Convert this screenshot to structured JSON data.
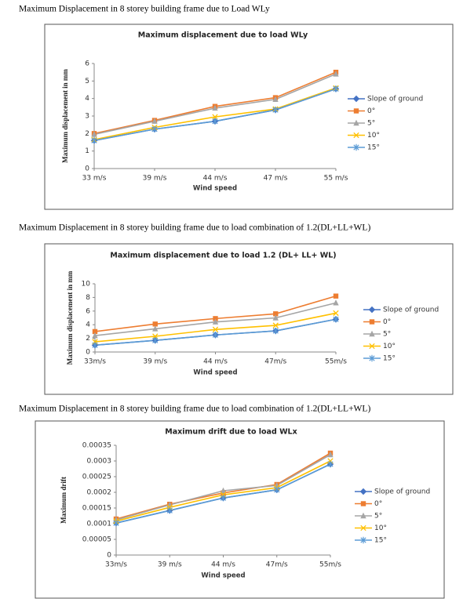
{
  "captions": [
    "Maximum Displacement in 8 storey building frame due to Load WLy",
    "Maximum Displacement in 8 storey building frame due to load combination of 1.2(DL+LL+WL)",
    "Maximum Displacement in 8 storey building frame due to load combination of 1.2(DL+LL+WL)"
  ],
  "chart_data": [
    {
      "type": "line",
      "title": "Maximum displacement due to load WLy",
      "x_label": "Wind speed",
      "y_label": "Maximum displacement in mm",
      "categories": [
        "33 m/s",
        "39 m/s",
        "44 m/s",
        "47 m/s",
        "55 m/s"
      ],
      "ylim": [
        0,
        6
      ],
      "yticks": [
        0,
        1,
        2,
        3,
        4,
        5,
        6
      ],
      "series": [
        {
          "name": "Slope of ground",
          "color": "#4472c4",
          "marker": "diamond",
          "values": [
            1.6,
            2.25,
            2.7,
            3.35,
            4.55
          ]
        },
        {
          "name": "0°",
          "color": "#ed7d31",
          "marker": "square",
          "values": [
            2.0,
            2.75,
            3.55,
            4.05,
            5.5
          ]
        },
        {
          "name": "5°",
          "color": "#a5a5a5",
          "marker": "triangle",
          "values": [
            1.95,
            2.7,
            3.45,
            3.95,
            5.4
          ]
        },
        {
          "name": "10°",
          "color": "#ffc000",
          "marker": "x",
          "values": [
            1.65,
            2.35,
            2.95,
            3.4,
            4.6
          ]
        },
        {
          "name": "15°",
          "color": "#5b9bd5",
          "marker": "star",
          "values": [
            1.6,
            2.25,
            2.7,
            3.35,
            4.55
          ]
        }
      ]
    },
    {
      "type": "line",
      "title": "Maximum displacement due to load 1.2 (DL+ LL+ WL)",
      "x_label": "Wind speed",
      "y_label": "Maximum  displacement in mm",
      "categories": [
        "33m/s",
        "39 m/s",
        "44 m/s",
        "47m/s",
        "55m/s"
      ],
      "ylim": [
        0,
        10
      ],
      "yticks": [
        0,
        2,
        4,
        6,
        8,
        10
      ],
      "series": [
        {
          "name": "Slope of ground",
          "color": "#4472c4",
          "marker": "diamond",
          "values": [
            1.0,
            1.7,
            2.5,
            3.1,
            4.8
          ]
        },
        {
          "name": "0°",
          "color": "#ed7d31",
          "marker": "square",
          "values": [
            3.0,
            4.1,
            4.9,
            5.6,
            8.2
          ]
        },
        {
          "name": "5°",
          "color": "#a5a5a5",
          "marker": "triangle",
          "values": [
            2.4,
            3.4,
            4.4,
            5.0,
            7.2
          ]
        },
        {
          "name": "10°",
          "color": "#ffc000",
          "marker": "x",
          "values": [
            1.5,
            2.3,
            3.3,
            3.9,
            5.7
          ]
        },
        {
          "name": "15°",
          "color": "#5b9bd5",
          "marker": "star",
          "values": [
            1.0,
            1.7,
            2.5,
            3.1,
            4.8
          ]
        }
      ]
    },
    {
      "type": "line",
      "title": "Maximum drift due to load WLx",
      "x_label": "Wind  speed",
      "y_label": "Maximum drift",
      "categories": [
        "33m/s",
        "39 m/s",
        "44 m/s",
        "47m/s",
        "55m/s"
      ],
      "ylim": [
        0,
        0.00035
      ],
      "yticks": [
        0,
        5e-05,
        0.0001,
        0.00015,
        0.0002,
        0.00025,
        0.0003,
        0.00035
      ],
      "series": [
        {
          "name": "Slope of ground",
          "color": "#4472c4",
          "marker": "diamond",
          "values": [
            0.000102,
            0.000142,
            0.000182,
            0.000208,
            0.00029
          ]
        },
        {
          "name": "0°",
          "color": "#ed7d31",
          "marker": "square",
          "values": [
            0.000115,
            0.000162,
            0.000198,
            0.000225,
            0.000325
          ]
        },
        {
          "name": "5°",
          "color": "#a5a5a5",
          "marker": "triangle",
          "values": [
            0.000112,
            0.00016,
            0.000205,
            0.000222,
            0.00032
          ]
        },
        {
          "name": "10°",
          "color": "#ffc000",
          "marker": "x",
          "values": [
            0.000108,
            0.000152,
            0.000192,
            0.000215,
            0.0003
          ]
        },
        {
          "name": "15°",
          "color": "#5b9bd5",
          "marker": "star",
          "values": [
            0.000102,
            0.000142,
            0.000182,
            0.000208,
            0.00029
          ]
        }
      ]
    }
  ]
}
